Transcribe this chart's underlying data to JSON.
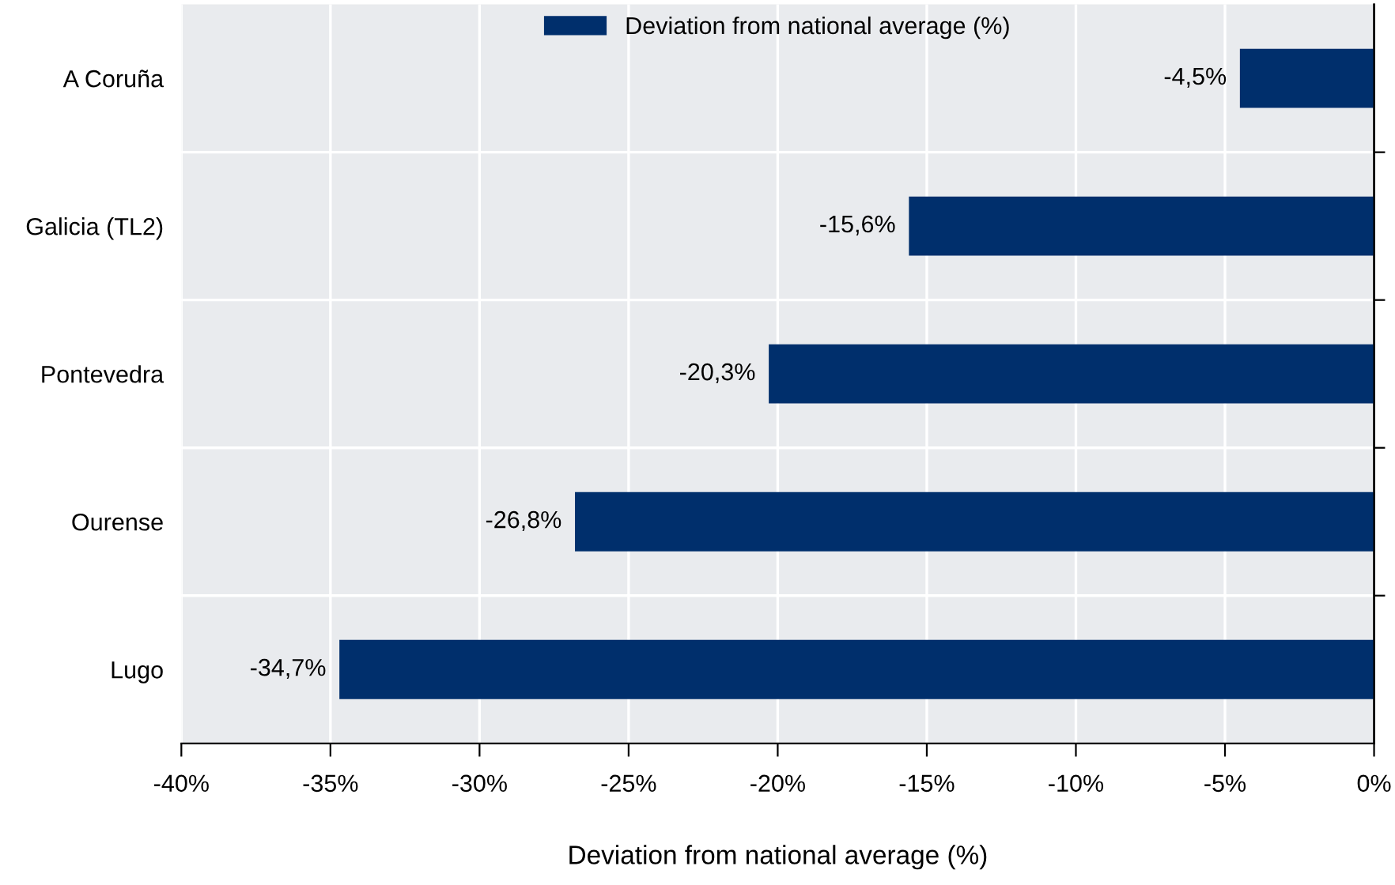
{
  "chart_data": {
    "type": "bar",
    "orientation": "horizontal",
    "xlabel": "Deviation from national average (%)",
    "categories": [
      "A Coruña",
      "Galicia (TL2)",
      "Pontevedra",
      "Ourense",
      "Lugo"
    ],
    "series": [
      {
        "name": "Deviation from national average (%)",
        "color": "#002f6c",
        "values": [
          -4.5,
          -15.6,
          -20.3,
          -26.8,
          -34.7
        ],
        "value_labels": [
          "-4,5%",
          "-15,6%",
          "-20,3%",
          "-26,8%",
          "-34,7%"
        ]
      }
    ],
    "xlim": [
      -40,
      0
    ],
    "xticks": [
      {
        "value": -40,
        "label": "-40%"
      },
      {
        "value": -35,
        "label": "-35%"
      },
      {
        "value": -30,
        "label": "-30%"
      },
      {
        "value": -25,
        "label": "-25%"
      },
      {
        "value": -20,
        "label": "-20%"
      },
      {
        "value": -15,
        "label": "-15%"
      },
      {
        "value": -10,
        "label": "-10%"
      },
      {
        "value": -5,
        "label": "-5%"
      },
      {
        "value": 0,
        "label": "0%"
      }
    ],
    "grid": true,
    "legend": "top"
  }
}
